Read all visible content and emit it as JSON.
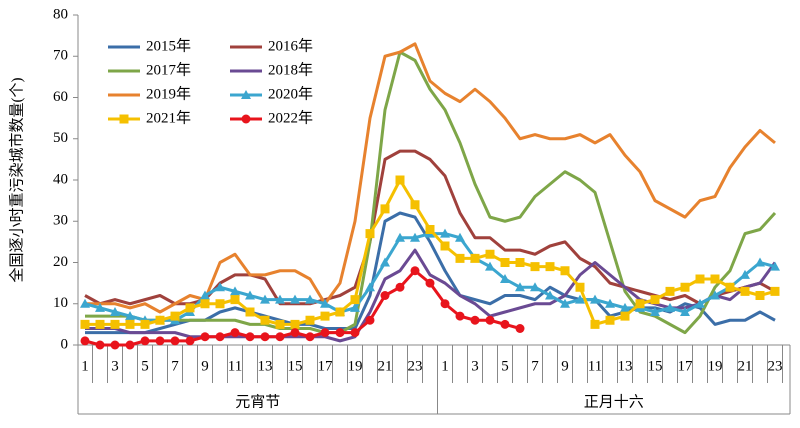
{
  "chart_data": {
    "type": "line",
    "y_label": "全国逐小时重污染城市数量(个)",
    "categories": [
      "1",
      null,
      "3",
      null,
      "5",
      null,
      "7",
      null,
      "9",
      null,
      "11",
      null,
      "13",
      null,
      "15",
      null,
      "17",
      null,
      "19",
      null,
      "21",
      null,
      "23",
      null,
      "1",
      null,
      "3",
      null,
      "5",
      null,
      "7",
      null,
      "9",
      null,
      "11",
      null,
      "13",
      null,
      "15",
      null,
      "17",
      null,
      "19",
      null,
      "21",
      null,
      "23"
    ],
    "x_groups": [
      {
        "label": "元宵节",
        "span": 24
      },
      {
        "label": "正月十六",
        "span": 23
      }
    ],
    "ylim": [
      0,
      80
    ],
    "yticks": [
      0,
      10,
      20,
      30,
      40,
      50,
      60,
      70,
      80
    ],
    "series": [
      {
        "name": "2015年",
        "color": "#3b6ea8",
        "marker": "none",
        "values": [
          3,
          3,
          3,
          3,
          3,
          4,
          5,
          6,
          6,
          8,
          9,
          8,
          7,
          6,
          5,
          5,
          4,
          4,
          4,
          12,
          30,
          32,
          31,
          25,
          18,
          12,
          11,
          10,
          12,
          12,
          11,
          14,
          12,
          11,
          11,
          7,
          8,
          9,
          9,
          8,
          10,
          9,
          5,
          6,
          6,
          8,
          6
        ]
      },
      {
        "name": "2016年",
        "color": "#a0413c",
        "marker": "none",
        "values": [
          12,
          10,
          11,
          10,
          11,
          12,
          10,
          10,
          11,
          15,
          17,
          17,
          16,
          10,
          10,
          10,
          11,
          12,
          14,
          25,
          45,
          47,
          47,
          45,
          41,
          32,
          26,
          26,
          23,
          23,
          22,
          24,
          25,
          21,
          19,
          15,
          14,
          13,
          12,
          11,
          12,
          10,
          12,
          13,
          14,
          15,
          13
        ]
      },
      {
        "name": "2017年",
        "color": "#7ea648",
        "marker": "none",
        "values": [
          7,
          7,
          7,
          7,
          6,
          6,
          6,
          6,
          6,
          6,
          6,
          5,
          5,
          4,
          4,
          4,
          3,
          3,
          5,
          25,
          57,
          71,
          69,
          62,
          57,
          49,
          39,
          31,
          30,
          31,
          36,
          39,
          42,
          40,
          37,
          25,
          13,
          8,
          7,
          5,
          3,
          7,
          14,
          18,
          27,
          28,
          32
        ]
      },
      {
        "name": "2018年",
        "color": "#6a4a93",
        "marker": "none",
        "values": [
          4,
          4,
          4,
          3,
          3,
          3,
          3,
          2,
          2,
          2,
          2,
          2,
          2,
          2,
          2,
          2,
          2,
          1,
          2,
          8,
          16,
          18,
          23,
          17,
          15,
          12,
          10,
          7,
          8,
          9,
          10,
          10,
          12,
          17,
          20,
          17,
          14,
          11,
          10,
          9,
          9,
          10,
          12,
          11,
          14,
          15,
          20
        ]
      },
      {
        "name": "2019年",
        "color": "#e7822e",
        "marker": "none",
        "values": [
          10,
          10,
          10,
          9,
          10,
          8,
          10,
          12,
          11,
          20,
          22,
          17,
          17,
          18,
          18,
          16,
          10,
          15,
          30,
          55,
          70,
          71,
          73,
          64,
          61,
          59,
          62,
          59,
          55,
          50,
          51,
          50,
          50,
          51,
          49,
          51,
          46,
          42,
          35,
          33,
          31,
          35,
          36,
          43,
          48,
          52,
          49
        ]
      },
      {
        "name": "2020年",
        "color": "#3ba6cf",
        "marker": "triangle",
        "values": [
          10,
          9,
          8,
          7,
          6,
          6,
          6,
          8,
          12,
          14,
          13,
          12,
          11,
          11,
          11,
          11,
          10,
          8,
          9,
          14,
          20,
          26,
          26,
          27,
          27,
          26,
          21,
          19,
          16,
          14,
          14,
          12,
          10,
          11,
          11,
          10,
          9,
          9,
          8,
          9,
          8,
          10,
          12,
          14,
          17,
          20,
          19
        ]
      },
      {
        "name": "2021年",
        "color": "#f5c000",
        "marker": "square",
        "values": [
          5,
          5,
          5,
          5,
          5,
          6,
          7,
          9,
          10,
          10,
          11,
          8,
          6,
          5,
          5,
          6,
          7,
          8,
          11,
          27,
          33,
          40,
          34,
          28,
          24,
          21,
          21,
          22,
          20,
          20,
          19,
          19,
          18,
          14,
          5,
          6,
          7,
          10,
          11,
          13,
          14,
          16,
          16,
          14,
          13,
          12,
          13
        ]
      },
      {
        "name": "2022年",
        "color": "#e8141c",
        "marker": "circle",
        "values": [
          1,
          0,
          0,
          0,
          1,
          1,
          1,
          1,
          2,
          2,
          3,
          2,
          2,
          2,
          3,
          2,
          3,
          3,
          3,
          6,
          12,
          14,
          18,
          15,
          10,
          7,
          6,
          6,
          5,
          4,
          null,
          null,
          null,
          null,
          null,
          null,
          null,
          null,
          null,
          null,
          null,
          null,
          null,
          null,
          null,
          null,
          null
        ]
      }
    ]
  }
}
